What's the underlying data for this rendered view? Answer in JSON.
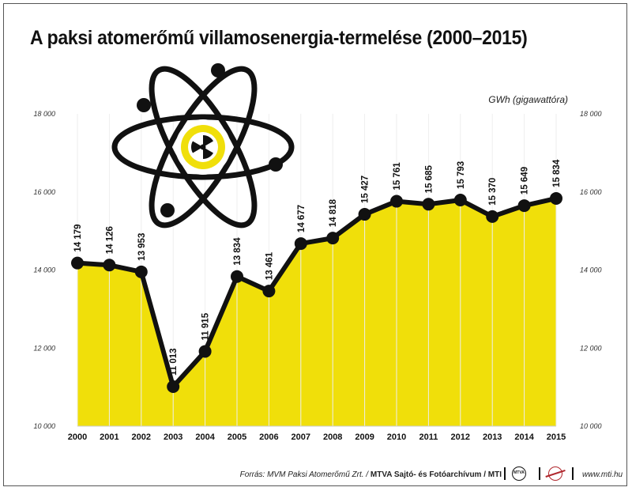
{
  "title": "A paksi atomerőmű villamosenergia-termelése (2000–2015)",
  "unit_label": "GWh (gigawattóra)",
  "footer": {
    "source_prefix": "Forrás: MVM Paksi Atomerőmű Zrt. / ",
    "source_bold": "MTVA Sajtó- és Fotóarchívum / MTI",
    "mtva_logo_text": "MTVA",
    "website": "www.mti.hu"
  },
  "colors": {
    "area": "#f0df0a",
    "line": "#111111",
    "grid": "#ffffff",
    "background": "#ffffff"
  },
  "icons": [
    "atom-icon",
    "radiation-icon",
    "mtva-logo",
    "mti-logo"
  ],
  "chart_data": {
    "type": "area",
    "categories": [
      "2000",
      "2001",
      "2002",
      "2003",
      "2004",
      "2005",
      "2006",
      "2007",
      "2008",
      "2009",
      "2010",
      "2011",
      "2012",
      "2013",
      "2014",
      "2015"
    ],
    "values": [
      14179,
      14126,
      13953,
      11013,
      11915,
      13834,
      13461,
      14677,
      14818,
      15427,
      15761,
      15685,
      15793,
      15370,
      15649,
      15834
    ],
    "value_labels": [
      "14 179",
      "14 126",
      "13 953",
      "11 013",
      "11 915",
      "13 834",
      "13 461",
      "14 677",
      "14 818",
      "15 427",
      "15 761",
      "15 685",
      "15 793",
      "15 370",
      "15 649",
      "15 834"
    ],
    "ylim": [
      10000,
      18000
    ],
    "yticks": [
      10000,
      12000,
      14000,
      16000,
      18000
    ],
    "ytick_labels": [
      "10 000",
      "12 000",
      "14 000",
      "16 000",
      "18 000"
    ],
    "ylabel": "GWh (gigawattóra)",
    "xlabel": "",
    "grid": "vertical",
    "legend": "none"
  }
}
